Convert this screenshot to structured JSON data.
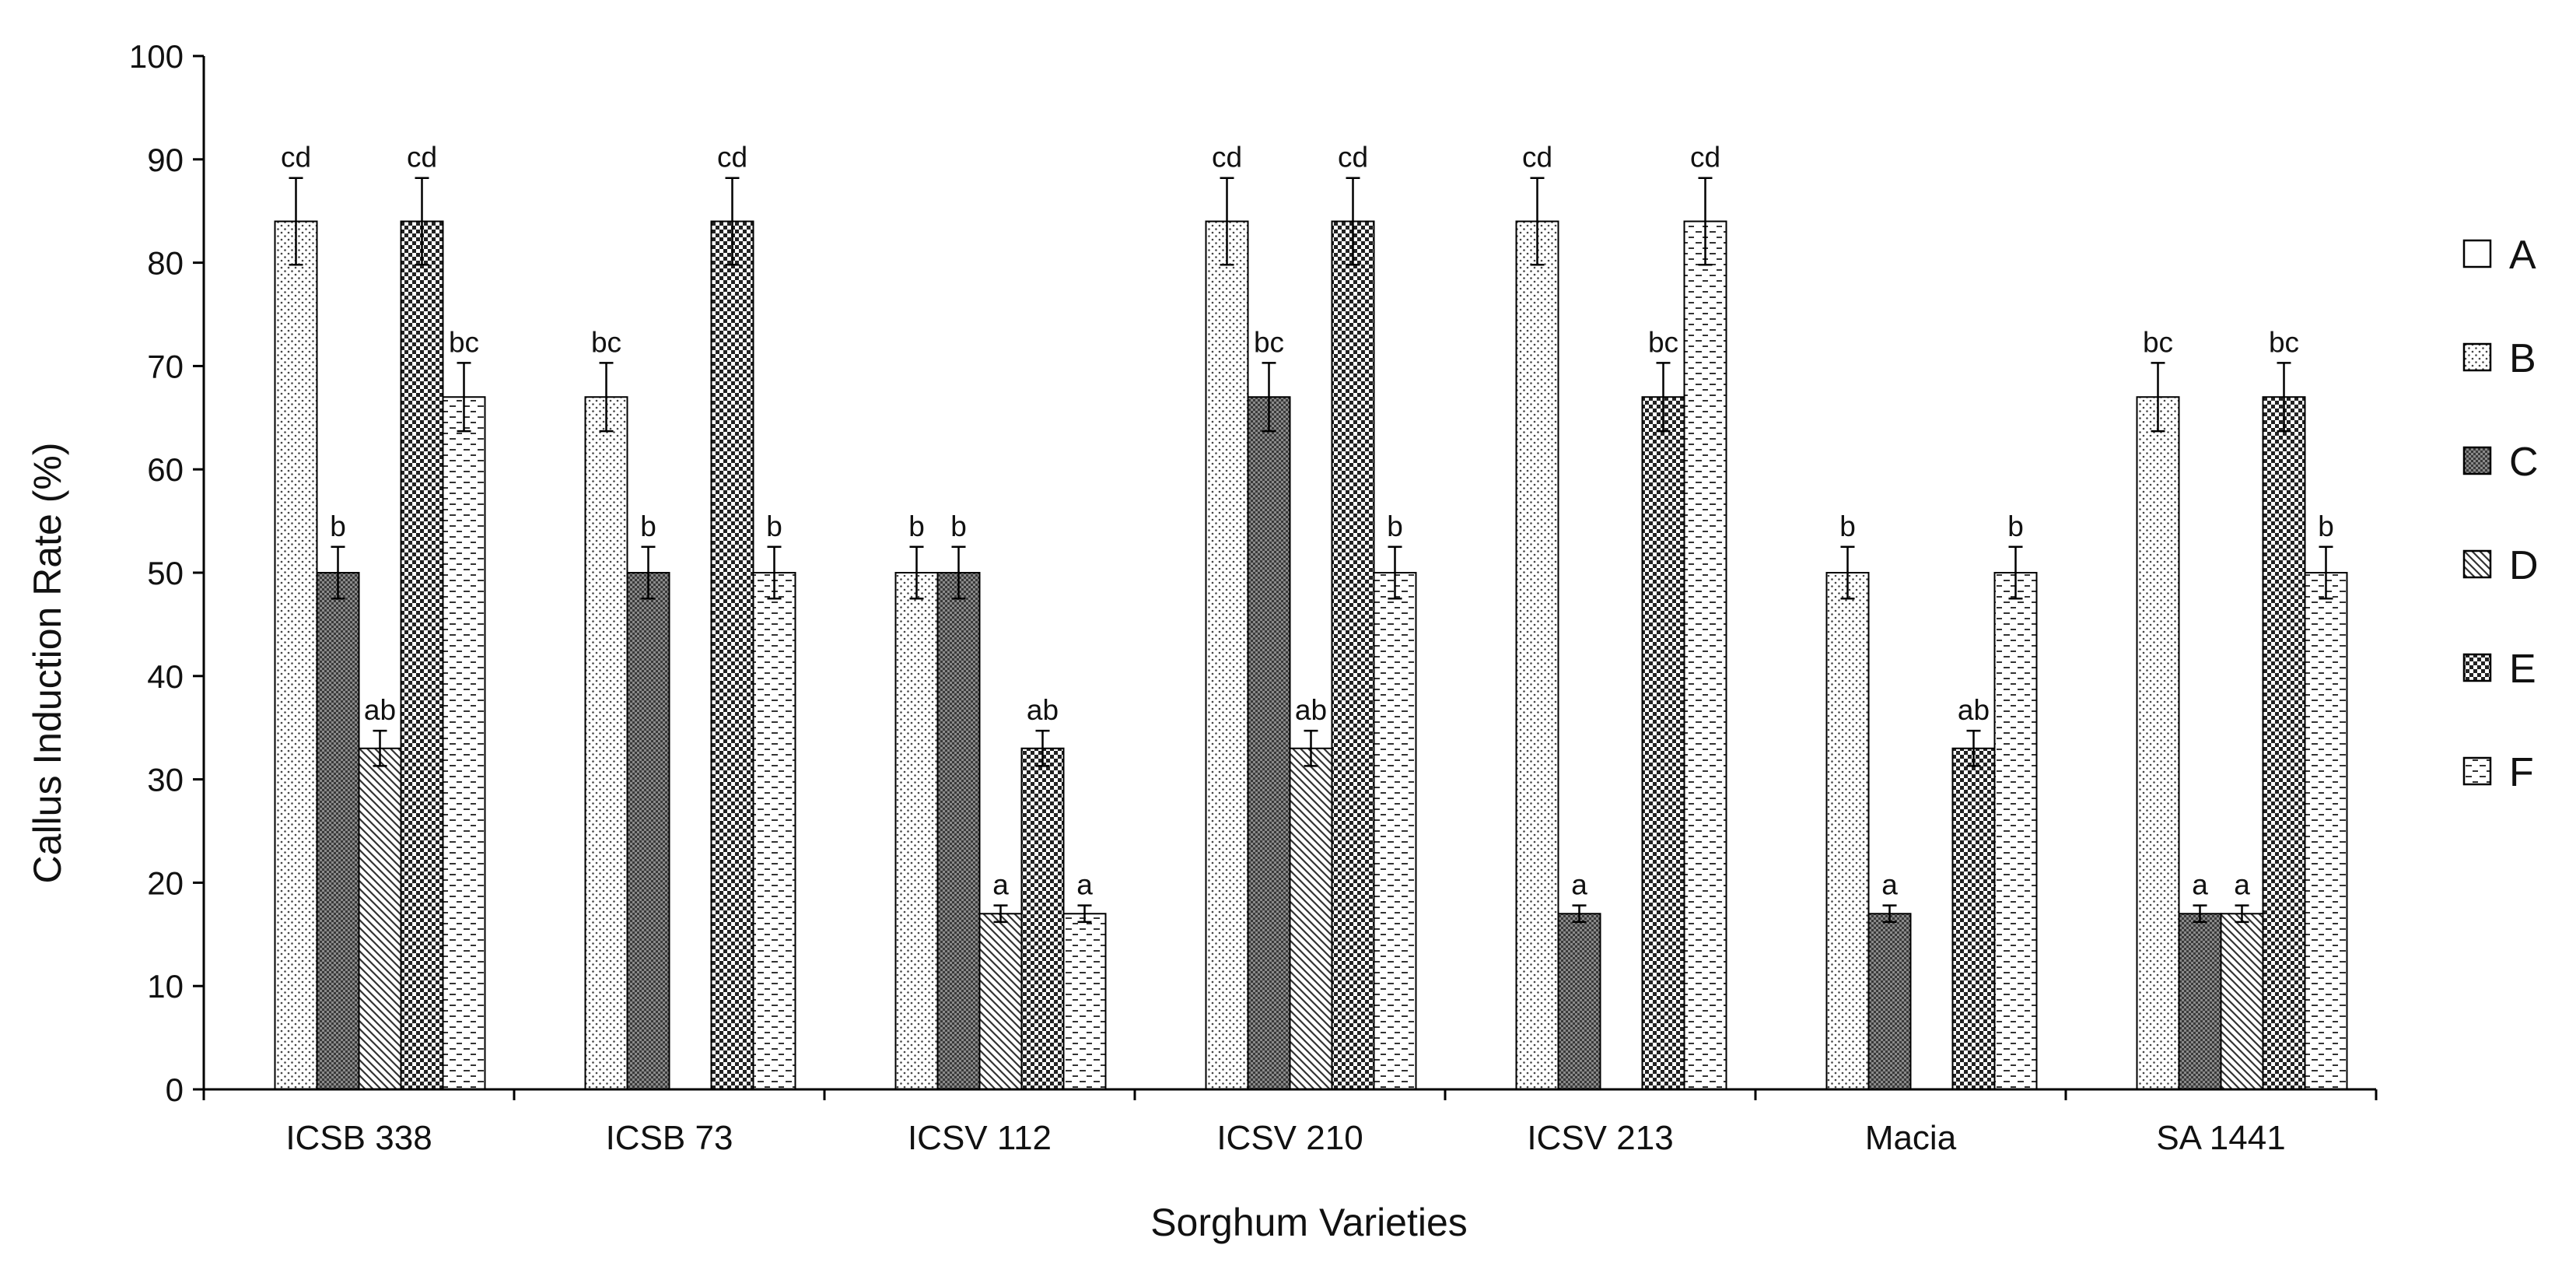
{
  "chart_data": {
    "type": "bar",
    "title": "",
    "xlabel": "Sorghum Varieties",
    "ylabel": "Callus Induction Rate (%)",
    "ylim": [
      0,
      100
    ],
    "yticks": [
      0,
      10,
      20,
      30,
      40,
      50,
      60,
      70,
      80,
      90,
      100
    ],
    "grid": false,
    "legend_position": "right",
    "error_bars": true,
    "categories": [
      "ICSB 338",
      "ICSB 73",
      "ICSV 112",
      "ICSV 210",
      "ICSV 213",
      "Macia",
      "SA 1441"
    ],
    "series": [
      {
        "name": "A",
        "pattern": "open",
        "values": [
          0,
          0,
          0,
          0,
          0,
          0,
          0
        ],
        "errors": [
          0,
          0,
          0,
          0,
          0,
          0,
          0
        ],
        "labels": [
          "",
          "",
          "",
          "",
          "",
          "",
          ""
        ]
      },
      {
        "name": "B",
        "pattern": "dots",
        "values": [
          84,
          67,
          50,
          84,
          84,
          50,
          67
        ],
        "errors": [
          4.2,
          3.3,
          2.5,
          4.2,
          4.2,
          2.5,
          3.3
        ],
        "labels": [
          "cd",
          "bc",
          "b",
          "cd",
          "cd",
          "b",
          "bc"
        ]
      },
      {
        "name": "C",
        "pattern": "dense",
        "values": [
          50,
          50,
          50,
          67,
          17,
          17,
          17
        ],
        "errors": [
          2.5,
          2.5,
          2.5,
          3.3,
          0.8,
          0.8,
          0.8
        ],
        "labels": [
          "b",
          "b",
          "b",
          "bc",
          "a",
          "a",
          "a"
        ]
      },
      {
        "name": "D",
        "pattern": "diagonal",
        "values": [
          33,
          0,
          17,
          33,
          0,
          0,
          17
        ],
        "errors": [
          1.7,
          0,
          0.8,
          1.7,
          0,
          0,
          0.8
        ],
        "labels": [
          "ab",
          "",
          "a",
          "ab",
          "",
          "",
          "a"
        ]
      },
      {
        "name": "E",
        "pattern": "checker",
        "values": [
          84,
          84,
          33,
          84,
          67,
          33,
          67
        ],
        "errors": [
          4.2,
          4.2,
          1.7,
          4.2,
          3.3,
          1.7,
          3.3
        ],
        "labels": [
          "cd",
          "cd",
          "ab",
          "cd",
          "bc",
          "ab",
          "bc"
        ]
      },
      {
        "name": "F",
        "pattern": "dashes",
        "values": [
          67,
          50,
          17,
          50,
          84,
          50,
          50
        ],
        "errors": [
          3.3,
          2.5,
          0.8,
          2.5,
          4.2,
          2.5,
          2.5
        ],
        "labels": [
          "bc",
          "b",
          "a",
          "b",
          "cd",
          "b",
          "b"
        ]
      }
    ]
  }
}
